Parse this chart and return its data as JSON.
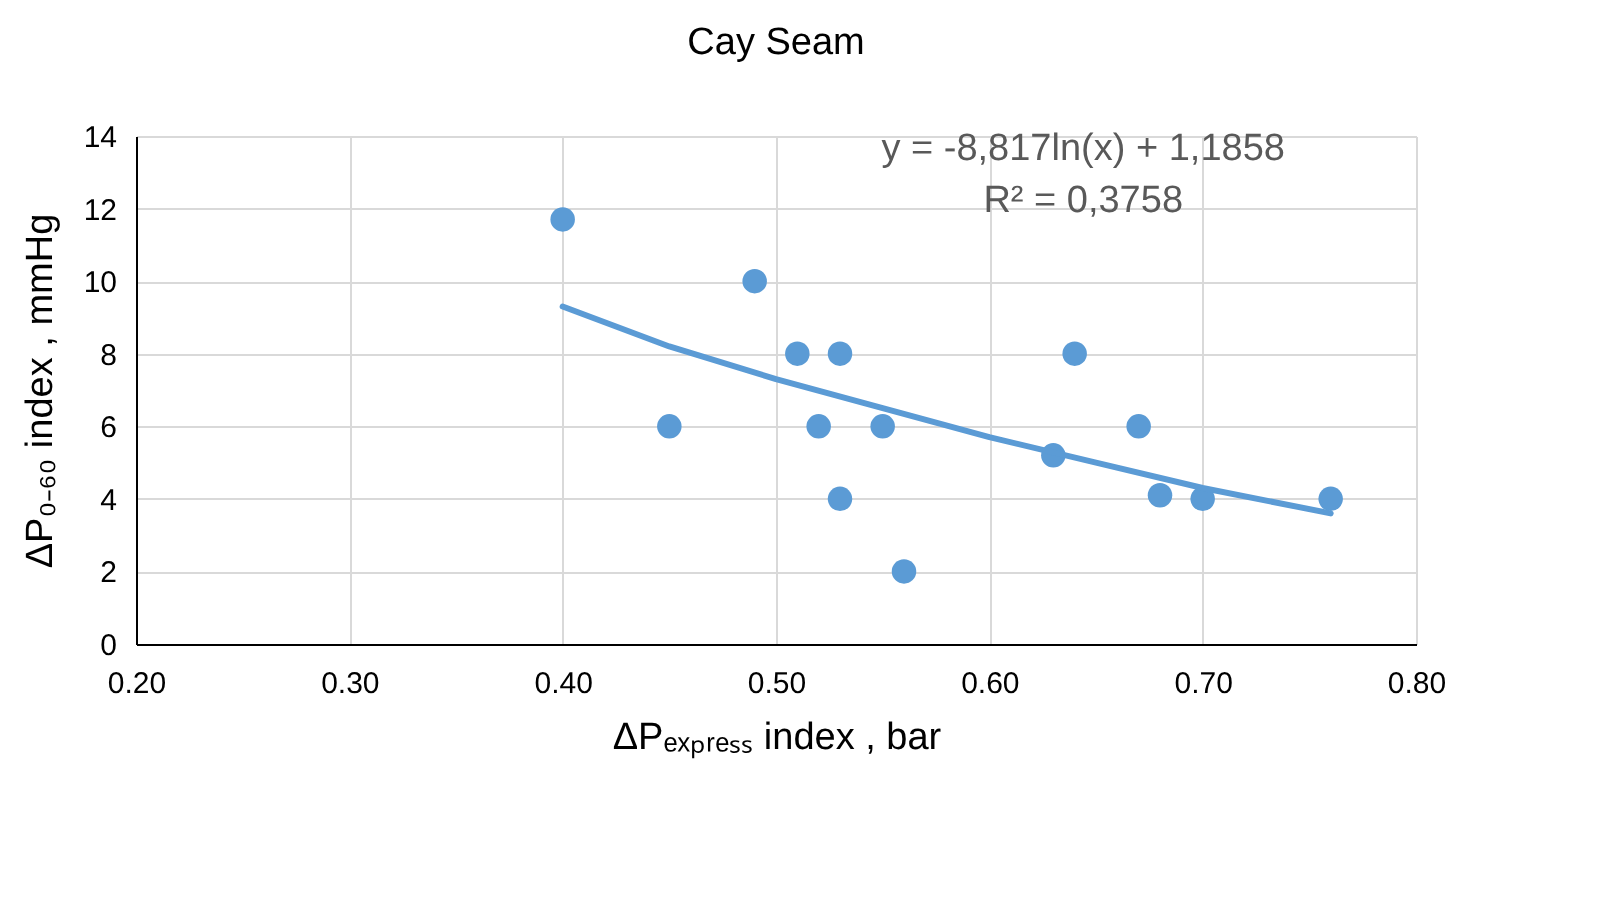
{
  "chart_data": {
    "type": "scatter",
    "title": "Cay Seam",
    "xlabel": "ΔPₑₓₚᵣₑₛₛ index , bar",
    "ylabel": "ΔP₀₋₆₀ index , mmHg",
    "annotations": [
      "y = -8,817ln(x) + 1,1858",
      "R² = 0,3758"
    ],
    "series": [
      {
        "color": "#5b9bd5",
        "marker": "circle",
        "x": [
          0.4,
          0.45,
          0.49,
          0.51,
          0.53,
          0.52,
          0.55,
          0.53,
          0.56,
          0.63,
          0.64,
          0.67,
          0.68,
          0.7,
          0.76
        ],
        "values": [
          11.7,
          6,
          10,
          8,
          8,
          6,
          6,
          4,
          2,
          5.2,
          8,
          6,
          4.1,
          4,
          4
        ]
      },
      {
        "type": "line",
        "color": "#5b9bd5",
        "marker": "none",
        "x": [
          0.4,
          0.45,
          0.5,
          0.55,
          0.6,
          0.65,
          0.7,
          0.76
        ],
        "values": [
          9.3,
          8.2,
          7.3,
          6.5,
          5.7,
          5.0,
          4.3,
          3.6
        ]
      }
    ],
    "xlim": [
      0.2,
      0.8
    ],
    "xticks": [
      {
        "value": 0.2,
        "label": "0.20"
      },
      {
        "value": 0.3,
        "label": "0.30"
      },
      {
        "value": 0.4,
        "label": "0.40"
      },
      {
        "value": 0.5,
        "label": "0.50"
      },
      {
        "value": 0.6,
        "label": "0.60"
      },
      {
        "value": 0.7,
        "label": "0.70"
      },
      {
        "value": 0.8,
        "label": "0.80"
      }
    ],
    "ylim": [
      0,
      14
    ],
    "yticks": [
      0,
      2,
      4,
      6,
      8,
      10,
      12,
      14
    ],
    "grid": true
  }
}
